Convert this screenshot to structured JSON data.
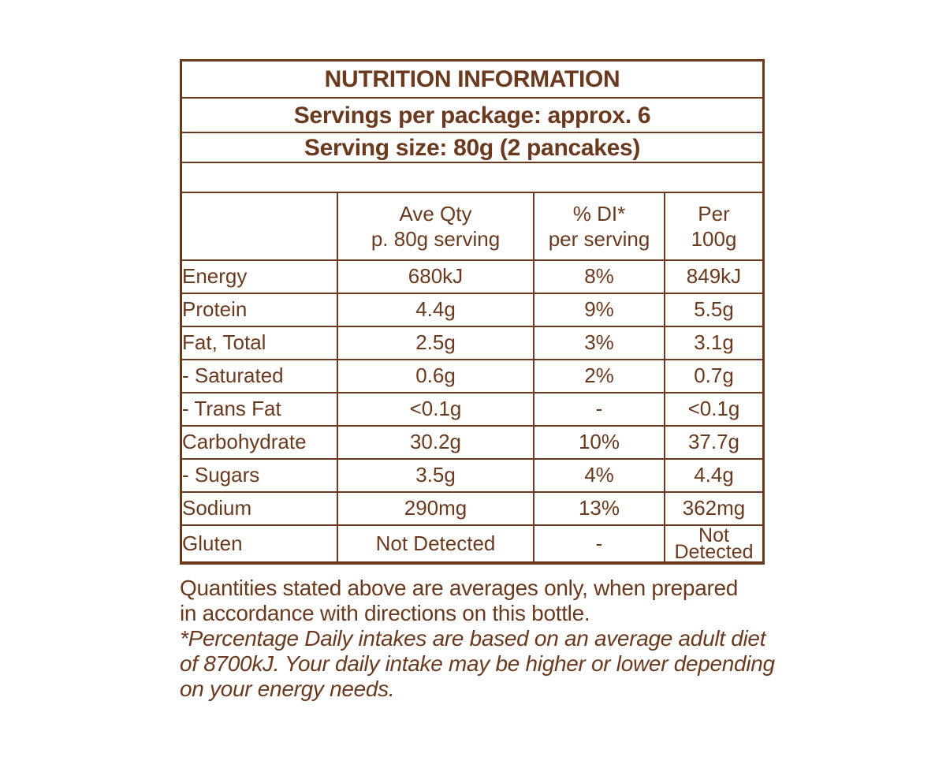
{
  "colors": {
    "text": "#6b3a1e",
    "border": "#6b3a1e",
    "background": "#ffffff"
  },
  "panel": {
    "title": "NUTRITION INFORMATION",
    "servings_per_package": "Servings per package: approx. 6",
    "serving_size": "Serving size: 80g (2 pancakes)"
  },
  "table": {
    "columns": [
      {
        "line1": "",
        "line2": ""
      },
      {
        "line1": "Ave Qty",
        "line2": "p. 80g serving"
      },
      {
        "line1": "% DI*",
        "line2": "per serving"
      },
      {
        "line1": "Per",
        "line2": "100g"
      }
    ],
    "rows": [
      {
        "nutrient": "Energy",
        "ave_qty": "680kJ",
        "di": "8%",
        "per_100g": "849kJ"
      },
      {
        "nutrient": "Protein",
        "ave_qty": "4.4g",
        "di": "9%",
        "per_100g": "5.5g"
      },
      {
        "nutrient": "Fat, Total",
        "ave_qty": "2.5g",
        "di": "3%",
        "per_100g": "3.1g"
      },
      {
        "nutrient": "- Saturated",
        "ave_qty": "0.6g",
        "di": "2%",
        "per_100g": "0.7g"
      },
      {
        "nutrient": "- Trans Fat",
        "ave_qty": "<0.1g",
        "di": "-",
        "per_100g": "<0.1g"
      },
      {
        "nutrient": "Carbohydrate",
        "ave_qty": "30.2g",
        "di": "10%",
        "per_100g": "37.7g"
      },
      {
        "nutrient": "- Sugars",
        "ave_qty": "3.5g",
        "di": "4%",
        "per_100g": "4.4g"
      },
      {
        "nutrient": "Sodium",
        "ave_qty": "290mg",
        "di": "13%",
        "per_100g": "362mg"
      },
      {
        "nutrient": "Gluten",
        "ave_qty": "Not Detected",
        "di": "-",
        "per_100g": "Not Detected"
      }
    ]
  },
  "footnotes": {
    "plain_lines": [
      "Quantities stated above are averages only, when prepared",
      "in accordance with directions on this bottle."
    ],
    "italic_lines": [
      "*Percentage Daily intakes are based on an average adult diet",
      "of 8700kJ. Your daily intake may be higher or lower depending",
      "on your energy needs."
    ]
  }
}
